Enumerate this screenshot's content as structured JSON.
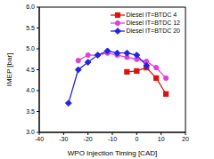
{
  "chart_data": {
    "type": "line",
    "x_label": "WPO Injection Timing [CAD]",
    "y_label": "IMEP [bar]",
    "xlim": [
      -40,
      20
    ],
    "xticks": [
      -40,
      -30,
      -20,
      -10,
      0,
      10,
      20
    ],
    "ylim": [
      3,
      6
    ],
    "yticks": [
      {
        "value": 3,
        "label": "3.0"
      },
      3.5,
      {
        "value": 4,
        "label": "4.0"
      },
      4.5,
      {
        "value": 5,
        "label": "5.0"
      },
      5.5,
      {
        "value": 6,
        "label": "6.0"
      }
    ],
    "grid": false,
    "legend": "upper right",
    "series": [
      {
        "name": "Diesel IT=BTDC 4",
        "color": "#dd1111",
        "marker": "square",
        "x": [
          -4,
          0,
          4,
          8,
          12
        ],
        "values": [
          4.45,
          4.47,
          4.55,
          4.3,
          3.92
        ]
      },
      {
        "name": "Diesel IT=BTDC 12",
        "color": "#e040d8",
        "marker": "circle",
        "x": [
          -24,
          -20,
          -16,
          -12,
          -8,
          -4,
          0,
          4,
          8,
          12
        ],
        "values": [
          4.72,
          4.85,
          4.85,
          4.9,
          4.85,
          4.8,
          4.75,
          4.7,
          4.55,
          4.3
        ]
      },
      {
        "name": "Diesel IT=BTDC 20",
        "color": "#2424dd",
        "marker": "diamond",
        "x": [
          -28,
          -24,
          -20,
          -16,
          -12,
          -8,
          -4,
          0,
          4
        ],
        "values": [
          3.7,
          4.5,
          4.68,
          4.85,
          4.95,
          4.9,
          4.9,
          4.85,
          4.6
        ]
      }
    ]
  }
}
